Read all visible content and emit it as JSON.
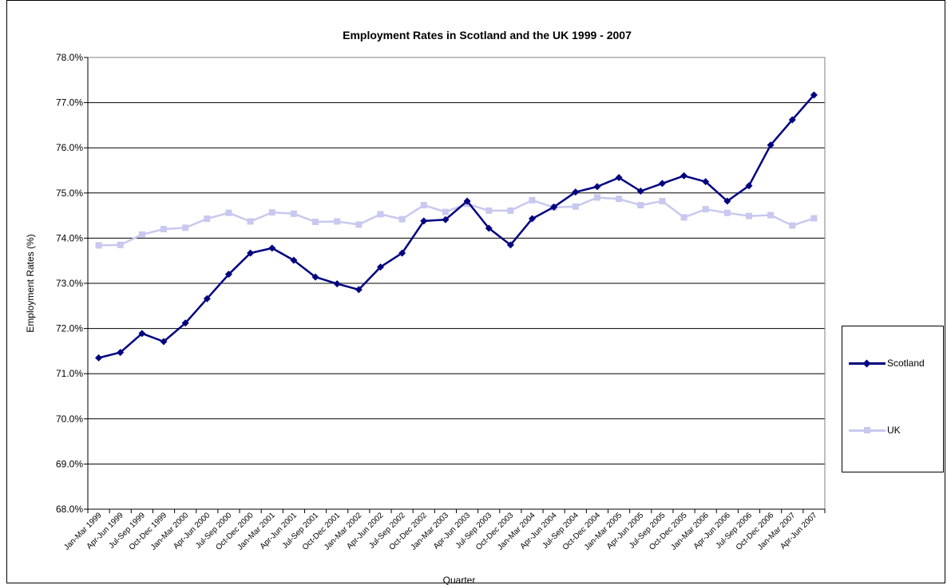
{
  "chart_data": {
    "type": "line",
    "title": "Employment Rates in Scotland and the UK 1999 - 2007",
    "xlabel": "Quarter",
    "ylabel": "Employment Rates (%)",
    "ylim": [
      68.0,
      78.0
    ],
    "y_ticks": [
      "68.0%",
      "69.0%",
      "70.0%",
      "71.0%",
      "72.0%",
      "73.0%",
      "74.0%",
      "75.0%",
      "76.0%",
      "77.0%",
      "78.0%"
    ],
    "grid": "horizontal",
    "legend_position": "right",
    "categories": [
      "Jan-Mar 1999",
      "Apr-Jun 1999",
      "Jul-Sep 1999",
      "Oct-Dec 1999",
      "Jan-Mar 2000",
      "Apr-Jun 2000",
      "Jul-Sep 2000",
      "Oct-Dec 2000",
      "Jan-Mar 2001",
      "Apr-Jun 2001",
      "Jul-Sep 2001",
      "Oct-Dec 2001",
      "Jan-Mar 2002",
      "Apr-Jun 2002",
      "Jul-Sep 2002",
      "Oct-Dec 2002",
      "Jan-Mar 2003",
      "Apr-Jun 2003",
      "Jul-Sep 2003",
      "Oct-Dec 2003",
      "Jan-Mar 2004",
      "Apr-Jun 2004",
      "Jul-Sep 2004",
      "Oct-Dec 2004",
      "Jan-Mar 2005",
      "Apr-Jun 2005",
      "Jul-Sep 2005",
      "Oct-Dec 2005",
      "Jan-Mar 2006",
      "Apr-Jun 2006",
      "Jul-Sep 2006",
      "Oct-Dec 2006",
      "Jan-Mar 2007",
      "Apr-Jun 2007"
    ],
    "series": [
      {
        "name": "Scotland",
        "color": "#000080",
        "marker": "diamond",
        "values": [
          71.35,
          71.47,
          71.89,
          71.71,
          72.12,
          72.66,
          73.2,
          73.67,
          73.78,
          73.51,
          73.14,
          72.99,
          72.86,
          73.36,
          73.67,
          74.38,
          74.41,
          74.82,
          74.22,
          73.85,
          74.43,
          74.69,
          75.02,
          75.14,
          75.34,
          75.04,
          75.21,
          75.38,
          75.25,
          74.82,
          75.16,
          76.06,
          76.62,
          77.17
        ]
      },
      {
        "name": "UK",
        "color": "#C8C8F0",
        "marker": "square",
        "values": [
          73.84,
          73.85,
          74.08,
          74.2,
          74.23,
          74.43,
          74.56,
          74.37,
          74.57,
          74.54,
          74.36,
          74.37,
          74.3,
          74.53,
          74.42,
          74.73,
          74.58,
          74.76,
          74.61,
          74.61,
          74.84,
          74.68,
          74.7,
          74.9,
          74.87,
          74.73,
          74.82,
          74.46,
          74.64,
          74.56,
          74.49,
          74.51,
          74.28,
          74.44
        ]
      }
    ]
  }
}
